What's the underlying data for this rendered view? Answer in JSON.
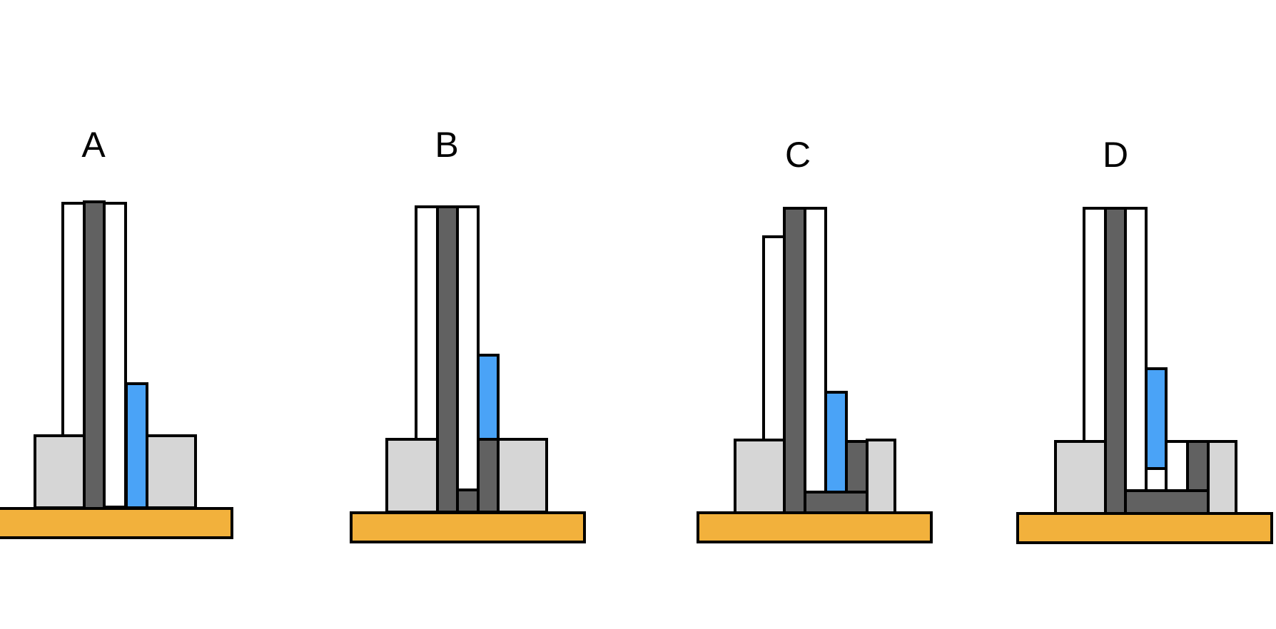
{
  "colors": {
    "base": "#F2B13C",
    "support": "#D6D6D6",
    "dark": "#616161",
    "blue": "#4AA3F7",
    "white": "#FFFFFF",
    "outline": "#000000"
  },
  "panels": [
    {
      "label": "A"
    },
    {
      "label": "B"
    },
    {
      "label": "C"
    },
    {
      "label": "D"
    }
  ]
}
